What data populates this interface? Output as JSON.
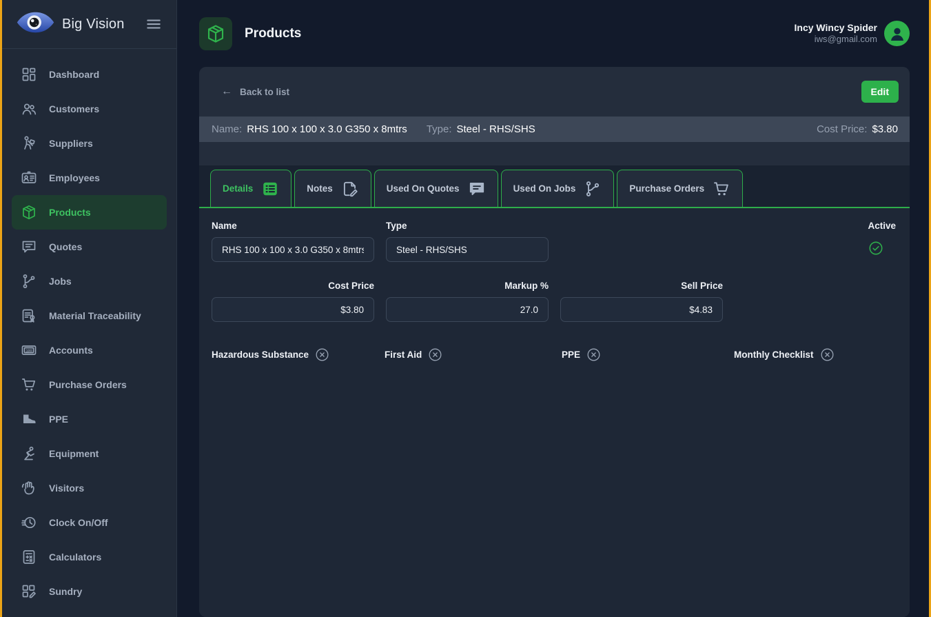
{
  "brand": "Big Vision",
  "sidebar": {
    "items": [
      {
        "label": "Dashboard",
        "icon": "grid-icon",
        "active": false
      },
      {
        "label": "Customers",
        "icon": "people-icon",
        "active": false
      },
      {
        "label": "Suppliers",
        "icon": "trolley-icon",
        "active": false
      },
      {
        "label": "Employees",
        "icon": "id-card-icon",
        "active": false
      },
      {
        "label": "Products",
        "icon": "box-icon",
        "active": true
      },
      {
        "label": "Quotes",
        "icon": "chat-icon",
        "active": false
      },
      {
        "label": "Jobs",
        "icon": "branch-icon",
        "active": false
      },
      {
        "label": "Material Traceability",
        "icon": "certificate-icon",
        "active": false
      },
      {
        "label": "Accounts",
        "icon": "banknote-icon",
        "active": false
      },
      {
        "label": "Purchase Orders",
        "icon": "cart-icon",
        "active": false
      },
      {
        "label": "PPE",
        "icon": "boot-icon",
        "active": false
      },
      {
        "label": "Equipment",
        "icon": "figure-icon",
        "active": false
      },
      {
        "label": "Visitors",
        "icon": "hand-wave-icon",
        "active": false
      },
      {
        "label": "Clock On/Off",
        "icon": "clock-icon",
        "active": false
      },
      {
        "label": "Calculators",
        "icon": "calculator-icon",
        "active": false
      },
      {
        "label": "Sundry",
        "icon": "blocks-pencil-icon",
        "active": false
      }
    ]
  },
  "header": {
    "title": "Products",
    "user_name": "Incy Wincy Spider",
    "user_email": "iws@gmail.com"
  },
  "toolbar": {
    "back_label": "Back to list",
    "edit_label": "Edit"
  },
  "summary": {
    "name_label": "Name:",
    "name_value": "RHS 100 x 100 x 3.0 G350 x 8mtrs",
    "type_label": "Type:",
    "type_value": "Steel - RHS/SHS",
    "cost_label": "Cost Price:",
    "cost_value": "$3.80"
  },
  "tabs": [
    {
      "label": "Details",
      "icon": "list-filled-icon",
      "active": true
    },
    {
      "label": "Notes",
      "icon": "note-edit-icon",
      "active": false
    },
    {
      "label": "Used On Quotes",
      "icon": "chat-filled-icon",
      "active": false
    },
    {
      "label": "Used On Jobs",
      "icon": "branch-icon",
      "active": false
    },
    {
      "label": "Purchase Orders",
      "icon": "cart-icon",
      "active": false
    }
  ],
  "form": {
    "name": {
      "label": "Name",
      "value": "RHS 100 x 100 x 3.0 G350 x 8mtrs"
    },
    "type": {
      "label": "Type",
      "value": "Steel - RHS/SHS"
    },
    "active": {
      "label": "Active",
      "state": "on"
    },
    "cost_price": {
      "label": "Cost Price",
      "value": "$3.80"
    },
    "markup": {
      "label": "Markup %",
      "value": "27.0"
    },
    "sell_price": {
      "label": "Sell Price",
      "value": "$4.83"
    },
    "flags": [
      "Hazardous Substance",
      "First Aid",
      "PPE",
      "Monthly Checklist"
    ]
  },
  "colors": {
    "accent_green": "#2fb34c",
    "edge_amber": "#eba417",
    "summary_bar": "#3d4757"
  }
}
